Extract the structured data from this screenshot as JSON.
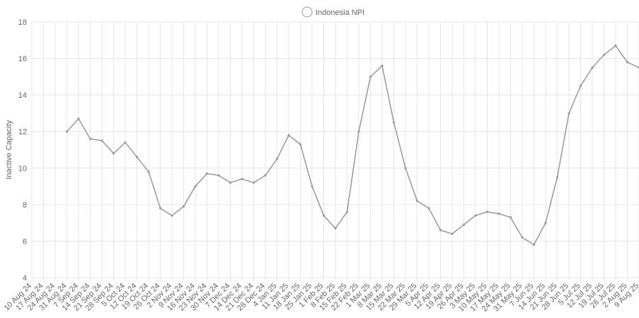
{
  "chart_data": {
    "type": "line",
    "y_label": "Inactive Capacity",
    "categories": [
      "10 Aug 24",
      "17 Aug 24",
      "24 Aug 24",
      "31 Aug 24",
      "7 Sep 24",
      "14 Sep 24",
      "21 Sep 24",
      "28 Sep 24",
      "5 Oct 24",
      "12 Oct 24",
      "19 Oct 24",
      "26 Oct 24",
      "2 Nov 24",
      "9 Nov 24",
      "16 Nov 24",
      "23 Nov 24",
      "30 Nov 24",
      "7 Dec 24",
      "14 Dec 24",
      "21 Dec 24",
      "28 Dec 24",
      "4 Jan 25",
      "11 Jan 25",
      "18 Jan 25",
      "25 Jan 25",
      "1 Feb 25",
      "8 Feb 25",
      "15 Feb 25",
      "22 Feb 25",
      "1 Mar 25",
      "8 Mar 25",
      "15 Mar 25",
      "22 Mar 25",
      "29 Mar 25",
      "5 Apr 25",
      "12 Apr 25",
      "19 Apr 25",
      "26 Apr 25",
      "3 May 25",
      "10 May 25",
      "17 May 25",
      "24 May 25",
      "31 May 25",
      "7 Jun 25",
      "14 Jun 25",
      "21 Jun 25",
      "28 Jun 25",
      "5 Jul 25",
      "12 Jul 25",
      "19 Jul 25",
      "26 Jul 25",
      "2 Aug 25",
      "9 Aug 25"
    ],
    "series": [
      {
        "name": "Indonesia NPI",
        "color": "#999999",
        "values": [
          null,
          null,
          null,
          12.0,
          12.7,
          11.6,
          11.5,
          10.8,
          11.4,
          10.6,
          9.8,
          7.8,
          7.4,
          7.9,
          9.0,
          9.7,
          9.6,
          9.2,
          9.4,
          9.2,
          9.6,
          10.5,
          11.8,
          11.3,
          9.0,
          7.4,
          6.7,
          7.6,
          12.0,
          15.0,
          15.6,
          12.5,
          10.0,
          8.2,
          7.8,
          6.6,
          6.4,
          6.9,
          7.4,
          7.6,
          7.5,
          7.3,
          6.2,
          5.8,
          7.0,
          9.5,
          13.0,
          14.5,
          15.5,
          16.2,
          16.7,
          15.8,
          15.5
        ]
      }
    ],
    "ylim": [
      4,
      18
    ],
    "yticks": [
      4,
      6,
      8,
      10,
      12,
      14,
      16,
      18
    ],
    "grid": true
  }
}
